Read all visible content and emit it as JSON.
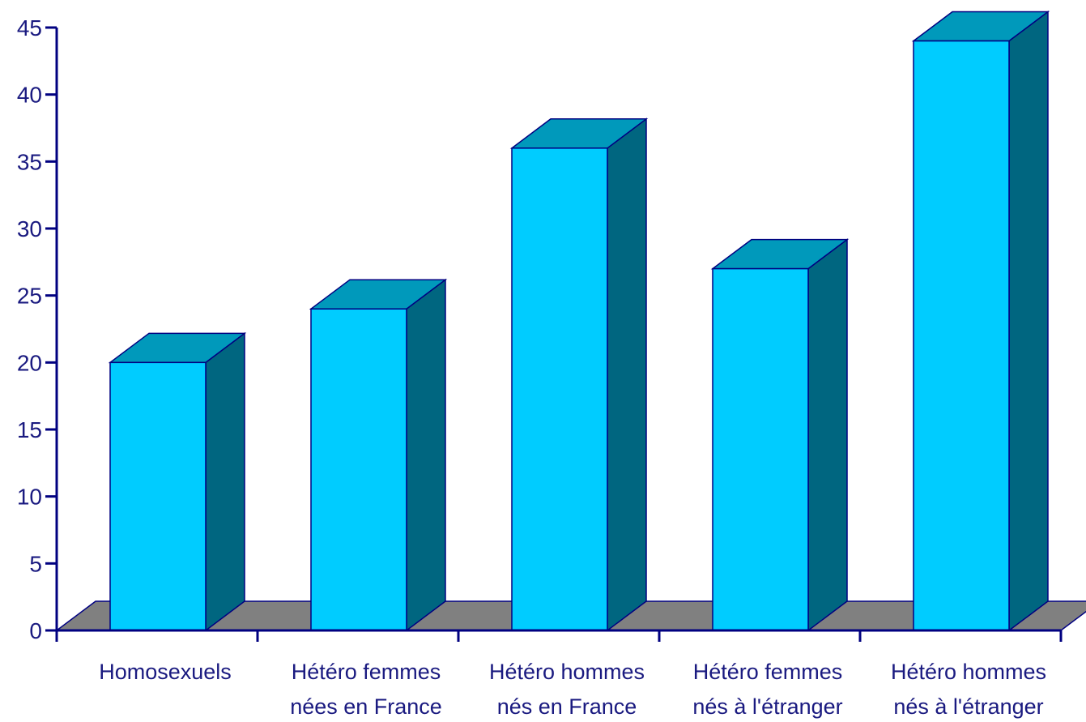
{
  "chart_data": {
    "type": "bar",
    "style": "3d",
    "categories": [
      [
        "Homosexuels"
      ],
      [
        "Hétéro femmes",
        "nées en France"
      ],
      [
        "Hétéro hommes",
        "nés en France"
      ],
      [
        "Hétéro  femmes",
        "nés à l'étranger"
      ],
      [
        "Hétéro hommes",
        "nés à l'étranger"
      ]
    ],
    "values": [
      20,
      24,
      36,
      27,
      44
    ],
    "ylim": [
      0,
      45
    ],
    "yticks": [
      0,
      5,
      10,
      15,
      20,
      25,
      30,
      35,
      40,
      45
    ],
    "title": "",
    "xlabel": "",
    "ylabel": "",
    "grid": false,
    "legend": "none",
    "colors": {
      "bar_front": "#00ccff",
      "bar_top": "#0099bb",
      "bar_side": "#006680",
      "floor": "#808080",
      "axis": "#000080",
      "text": "#1a1a80"
    }
  }
}
